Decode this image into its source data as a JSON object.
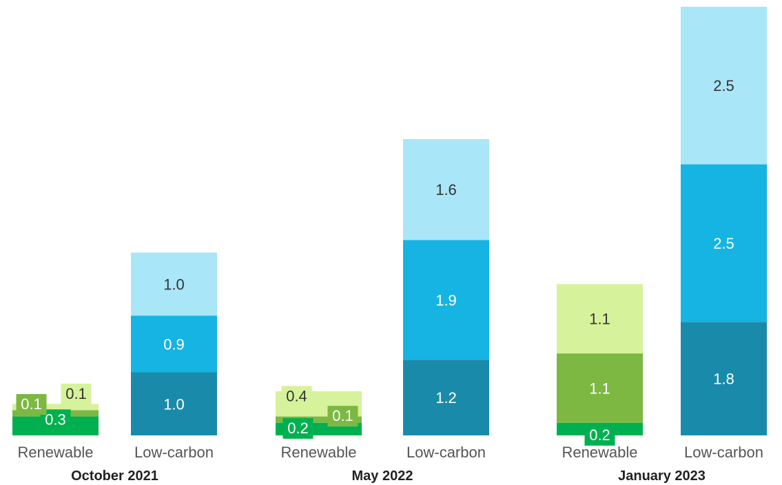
{
  "chart_data": {
    "type": "bar",
    "stacked": true,
    "groups": [
      {
        "label": "October 2021",
        "bars": [
          {
            "category": "Renewable",
            "segments": [
              {
                "value": 0.3,
                "label": "0.3",
                "color": "#00b050"
              },
              {
                "value": 0.1,
                "label": "0.1",
                "color": "#7cb842"
              },
              {
                "value": 0.1,
                "label": "0.1",
                "color": "#d6f29b"
              }
            ]
          },
          {
            "category": "Low-carbon",
            "segments": [
              {
                "value": 1.0,
                "label": "1.0",
                "color": "#1a8aaa"
              },
              {
                "value": 0.9,
                "label": "0.9",
                "color": "#15b4e2"
              },
              {
                "value": 1.0,
                "label": "1.0",
                "color": "#a9e6f7"
              }
            ]
          }
        ]
      },
      {
        "label": "May 2022",
        "bars": [
          {
            "category": "Renewable",
            "segments": [
              {
                "value": 0.2,
                "label": "0.2",
                "color": "#00b050"
              },
              {
                "value": 0.1,
                "label": "0.1",
                "color": "#7cb842"
              },
              {
                "value": 0.4,
                "label": "0.4",
                "color": "#d6f29b"
              }
            ]
          },
          {
            "category": "Low-carbon",
            "segments": [
              {
                "value": 1.2,
                "label": "1.2",
                "color": "#1a8aaa"
              },
              {
                "value": 1.9,
                "label": "1.9",
                "color": "#15b4e2"
              },
              {
                "value": 1.6,
                "label": "1.6",
                "color": "#a9e6f7"
              }
            ]
          }
        ]
      },
      {
        "label": "January 2023",
        "bars": [
          {
            "category": "Renewable",
            "segments": [
              {
                "value": 0.2,
                "label": "0.2",
                "color": "#00b050"
              },
              {
                "value": 1.1,
                "label": "1.1",
                "color": "#7cb842"
              },
              {
                "value": 1.1,
                "label": "1.1",
                "color": "#d6f29b"
              }
            ]
          },
          {
            "category": "Low-carbon",
            "segments": [
              {
                "value": 1.8,
                "label": "1.8",
                "color": "#1a8aaa"
              },
              {
                "value": 2.5,
                "label": "2.5",
                "color": "#15b4e2"
              },
              {
                "value": 2.5,
                "label": "2.5",
                "color": "#a9e6f7"
              }
            ]
          }
        ]
      }
    ],
    "grid": false,
    "legend": "none"
  }
}
